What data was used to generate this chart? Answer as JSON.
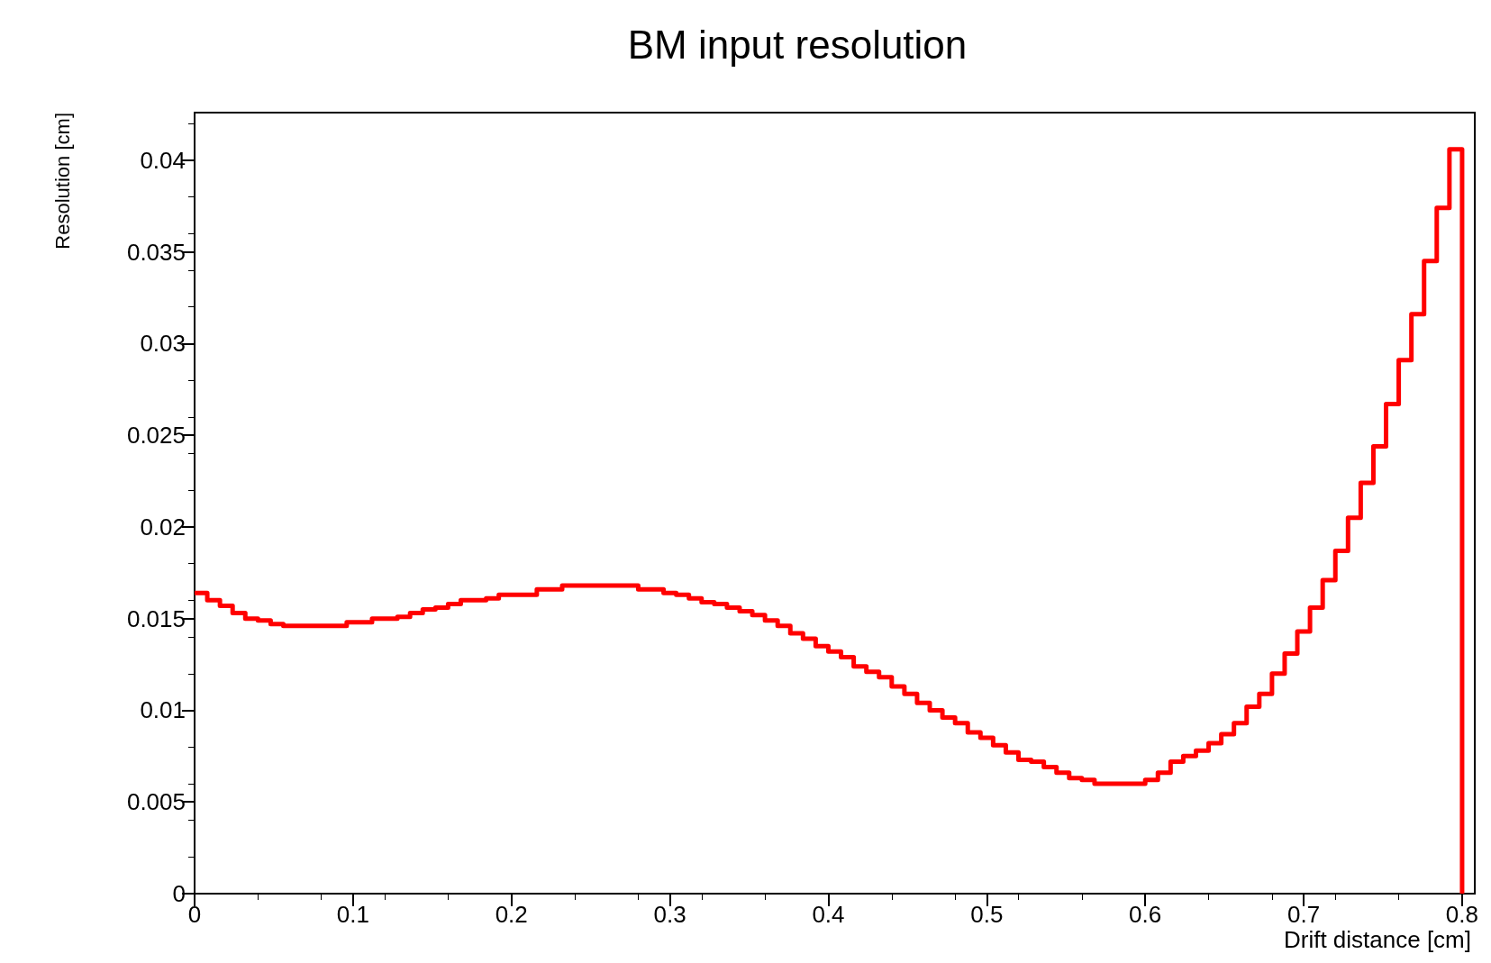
{
  "chart_data": {
    "type": "histogram",
    "title": "BM input resolution",
    "xlabel": "Drift distance [cm]",
    "ylabel": "Resolution [cm]",
    "bins": [
      0,
      0.008,
      0.016,
      0.024,
      0.032,
      0.04,
      0.048,
      0.056,
      0.064,
      0.072,
      0.08,
      0.088,
      0.096,
      0.104,
      0.112,
      0.12,
      0.128,
      0.136,
      0.144,
      0.152,
      0.16,
      0.168,
      0.176,
      0.184,
      0.192,
      0.2,
      0.208,
      0.216,
      0.224,
      0.232,
      0.24,
      0.248,
      0.256,
      0.264,
      0.272,
      0.28,
      0.288,
      0.296,
      0.304,
      0.312,
      0.32,
      0.328,
      0.336,
      0.344,
      0.352,
      0.36,
      0.368,
      0.376,
      0.384,
      0.392,
      0.4,
      0.408,
      0.416,
      0.424,
      0.432,
      0.44,
      0.448,
      0.456,
      0.464,
      0.472,
      0.48,
      0.488,
      0.496,
      0.504,
      0.512,
      0.52,
      0.528,
      0.536,
      0.544,
      0.552,
      0.56,
      0.568,
      0.576,
      0.584,
      0.592,
      0.6,
      0.608,
      0.616,
      0.624,
      0.632,
      0.64,
      0.648,
      0.656,
      0.664,
      0.672,
      0.68,
      0.688,
      0.696,
      0.704,
      0.712,
      0.72,
      0.728,
      0.736,
      0.744,
      0.752,
      0.76,
      0.768,
      0.776,
      0.784,
      0.792,
      0.8
    ],
    "values": [
      0.0164,
      0.016,
      0.0157,
      0.0153,
      0.015,
      0.0149,
      0.0147,
      0.0146,
      0.0146,
      0.0146,
      0.0146,
      0.0146,
      0.0148,
      0.0148,
      0.015,
      0.015,
      0.0151,
      0.0153,
      0.0155,
      0.0156,
      0.0158,
      0.016,
      0.016,
      0.0161,
      0.0163,
      0.0163,
      0.0163,
      0.0166,
      0.0166,
      0.0168,
      0.0168,
      0.0168,
      0.0168,
      0.0168,
      0.0168,
      0.0166,
      0.0166,
      0.0164,
      0.0163,
      0.0161,
      0.0159,
      0.0158,
      0.0156,
      0.0154,
      0.0152,
      0.0149,
      0.0146,
      0.0142,
      0.0139,
      0.0135,
      0.0132,
      0.0129,
      0.0124,
      0.0121,
      0.0118,
      0.0113,
      0.0109,
      0.0104,
      0.01,
      0.0096,
      0.0093,
      0.0088,
      0.0085,
      0.0081,
      0.0077,
      0.0073,
      0.0072,
      0.0069,
      0.0066,
      0.0063,
      0.0062,
      0.006,
      0.006,
      0.006,
      0.006,
      0.0062,
      0.0066,
      0.0072,
      0.0075,
      0.0078,
      0.0082,
      0.0087,
      0.0093,
      0.0102,
      0.0109,
      0.012,
      0.0131,
      0.0143,
      0.0156,
      0.0171,
      0.0187,
      0.0205,
      0.0224,
      0.0244,
      0.0267,
      0.0291,
      0.0316,
      0.0345,
      0.0374,
      0.0406
    ],
    "color": "#ff0000",
    "xlim": [
      0,
      0.808
    ],
    "ylim": [
      0,
      0.0426
    ],
    "xticks": [
      0,
      0.1,
      0.2,
      0.3,
      0.4,
      0.5,
      0.6,
      0.7,
      0.8
    ],
    "yticks": [
      0,
      0.005,
      0.01,
      0.015,
      0.02,
      0.025,
      0.03,
      0.035,
      0.04
    ],
    "grid": false
  }
}
